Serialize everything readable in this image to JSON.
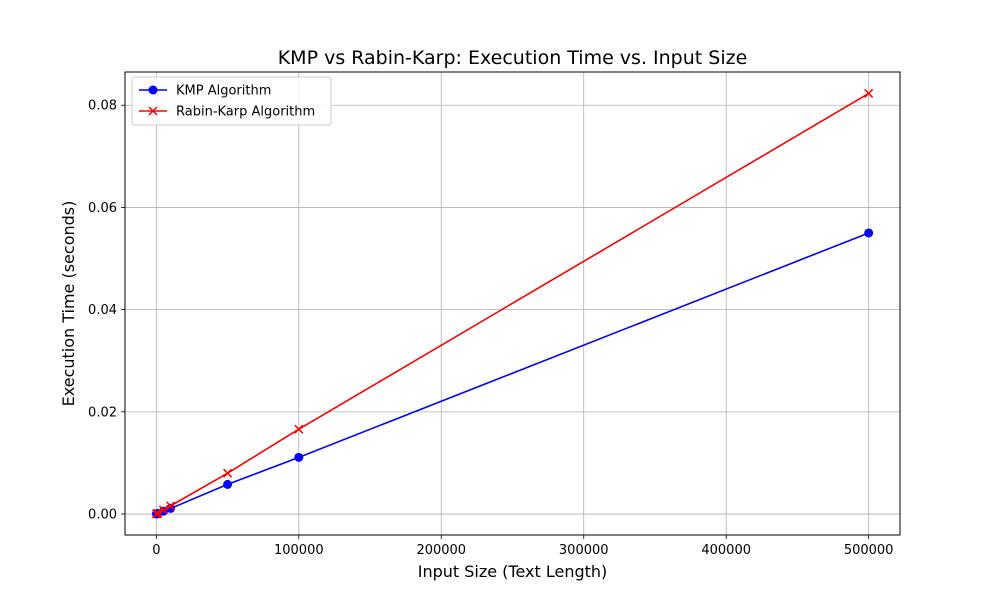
{
  "chart_data": {
    "type": "line",
    "title": "KMP vs Rabin-Karp: Execution Time vs. Input Size",
    "xlabel": "Input Size (Text Length)",
    "ylabel": "Execution Time (seconds)",
    "xlim": [
      -22000,
      522000
    ],
    "ylim": [
      -0.0041,
      0.0865
    ],
    "xticks": [
      0,
      100000,
      200000,
      300000,
      400000,
      500000
    ],
    "xtick_labels": [
      "0",
      "100000",
      "200000",
      "300000",
      "400000",
      "500000"
    ],
    "yticks": [
      0.0,
      0.02,
      0.04,
      0.06,
      0.08
    ],
    "ytick_labels": [
      "0.00",
      "0.02",
      "0.04",
      "0.06",
      "0.08"
    ],
    "grid": true,
    "legend_position": "top-left",
    "x": [
      100,
      500,
      1000,
      5000,
      10000,
      50000,
      100000,
      500000
    ],
    "series": [
      {
        "name": "KMP Algorithm",
        "color": "#0000ff",
        "marker": "circle",
        "values": [
          1e-05,
          5e-05,
          0.00011,
          0.00055,
          0.0011,
          0.0058,
          0.0111,
          0.055
        ]
      },
      {
        "name": "Rabin-Karp Algorithm",
        "color": "#ff0000",
        "marker": "x",
        "values": [
          1.6e-05,
          8e-05,
          0.00016,
          0.0008,
          0.0016,
          0.008,
          0.0166,
          0.0823
        ]
      }
    ]
  }
}
